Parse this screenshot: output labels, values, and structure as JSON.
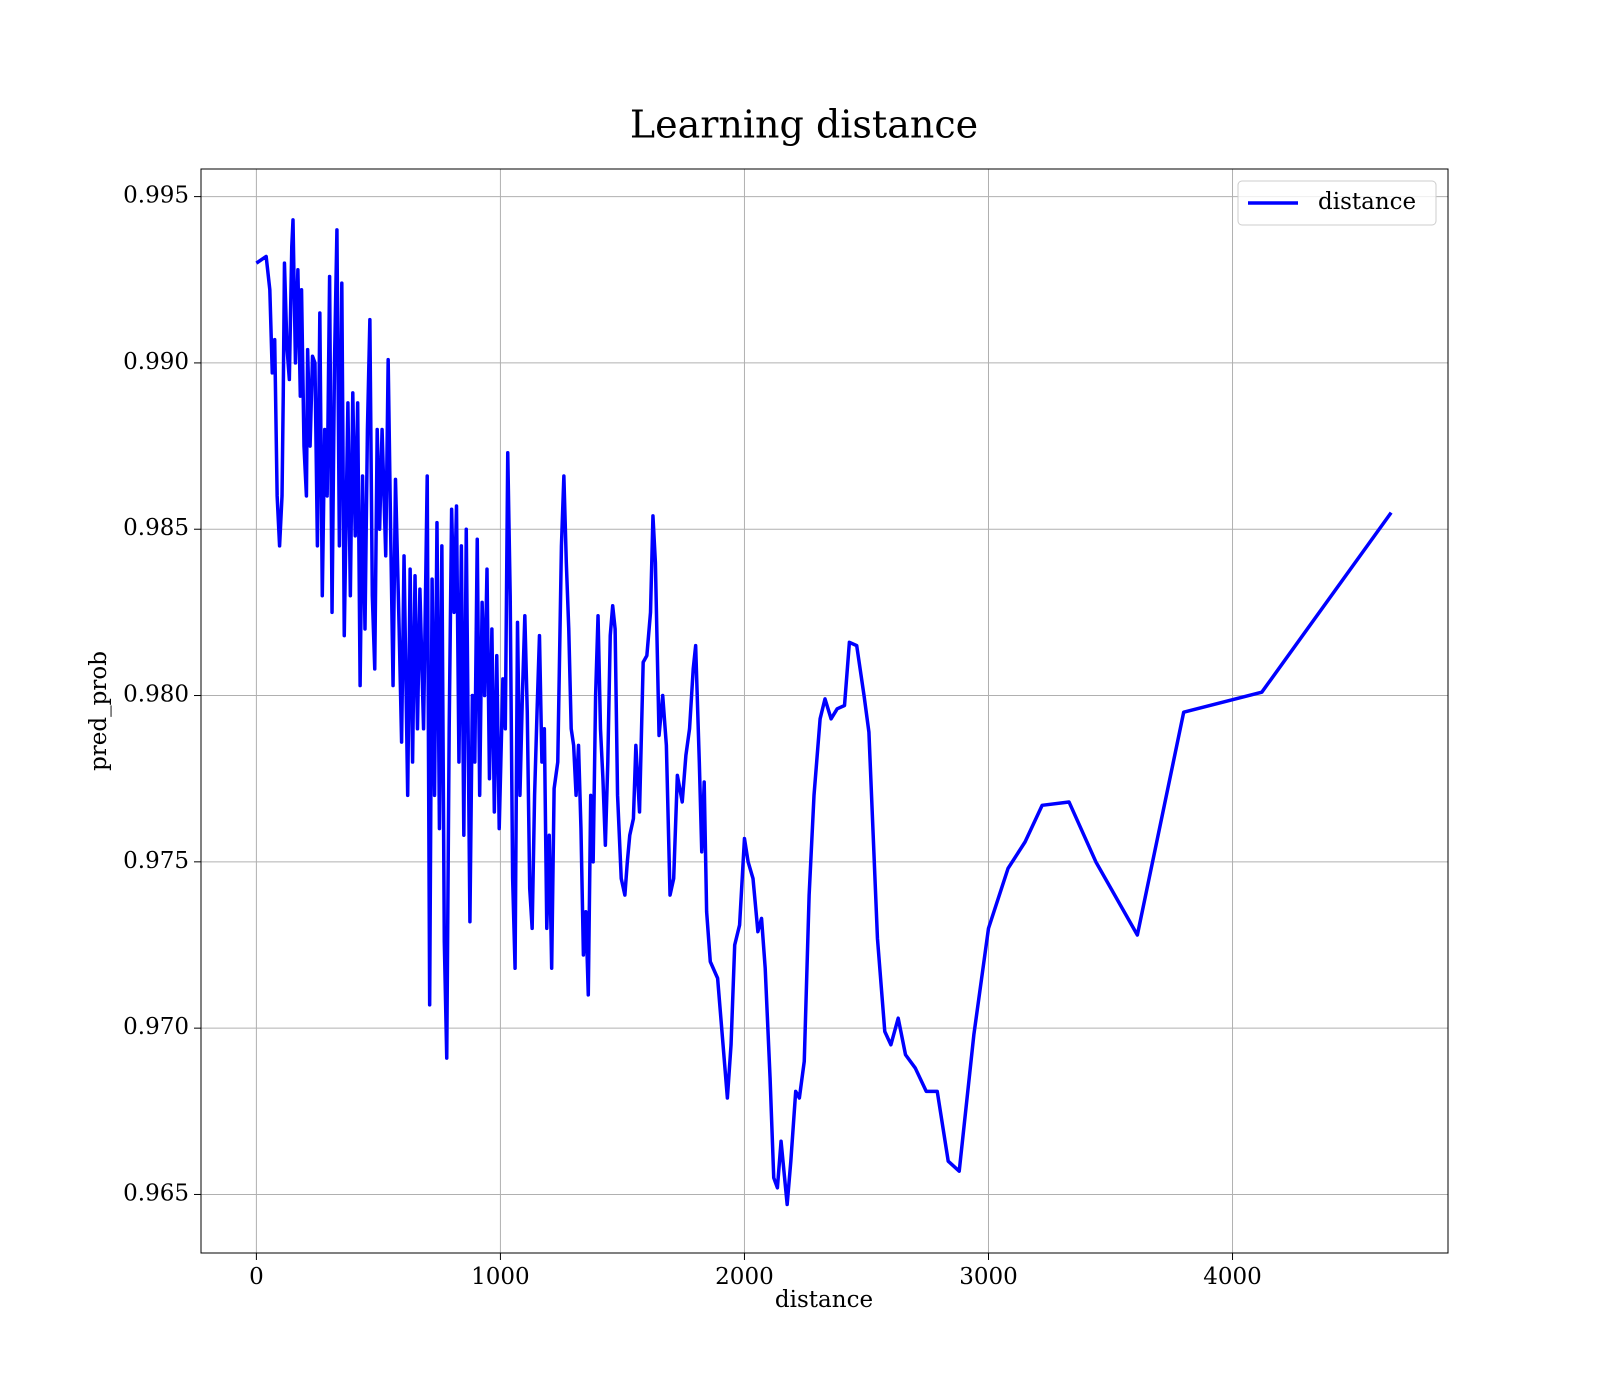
{
  "chart_data": {
    "type": "line",
    "title": "Learning distance",
    "xlabel": "distance",
    "ylabel": "pred_prob",
    "xlim": [
      -227,
      4883
    ],
    "ylim": [
      0.96324,
      0.99583
    ],
    "xticks": [
      0,
      1000,
      2000,
      3000,
      4000
    ],
    "yticks": [
      0.965,
      {
        "value": 0.97,
        "label": "0.970"
      },
      0.975,
      {
        "value": 0.98,
        "label": "0.980"
      },
      0.985,
      {
        "value": 0.99,
        "label": "0.990"
      },
      0.995
    ],
    "grid": true,
    "legend": "upper right",
    "x": [
      0,
      40,
      55,
      65,
      75,
      85,
      95,
      105,
      110,
      115,
      125,
      135,
      145,
      150,
      160,
      170,
      180,
      185,
      195,
      205,
      210,
      220,
      230,
      240,
      250,
      260,
      270,
      280,
      290,
      300,
      310,
      320,
      330,
      340,
      350,
      360,
      375,
      385,
      395,
      405,
      415,
      425,
      435,
      445,
      455,
      465,
      475,
      485,
      495,
      505,
      515,
      530,
      540,
      550,
      560,
      570,
      585,
      595,
      605,
      620,
      630,
      640,
      650,
      660,
      670,
      685,
      700,
      710,
      720,
      730,
      740,
      750,
      760,
      770,
      780,
      790,
      800,
      810,
      820,
      830,
      840,
      850,
      860,
      875,
      885,
      895,
      905,
      915,
      925,
      935,
      945,
      955,
      965,
      975,
      985,
      995,
      1010,
      1020,
      1030,
      1040,
      1050,
      1060,
      1070,
      1080,
      1090,
      1100,
      1110,
      1120,
      1130,
      1140,
      1150,
      1160,
      1170,
      1180,
      1190,
      1200,
      1210,
      1220,
      1235,
      1250,
      1260,
      1270,
      1280,
      1290,
      1300,
      1310,
      1320,
      1330,
      1340,
      1350,
      1360,
      1370,
      1380,
      1390,
      1400,
      1410,
      1420,
      1430,
      1440,
      1450,
      1460,
      1470,
      1480,
      1495,
      1510,
      1520,
      1530,
      1545,
      1555,
      1570,
      1585,
      1600,
      1615,
      1625,
      1635,
      1650,
      1665,
      1680,
      1695,
      1710,
      1725,
      1745,
      1760,
      1775,
      1790,
      1800,
      1815,
      1825,
      1835,
      1845,
      1860,
      1890,
      1930,
      1945,
      1960,
      1980,
      2000,
      2015,
      2035,
      2055,
      2070,
      2085,
      2105,
      2120,
      2135,
      2150,
      2175,
      2190,
      2210,
      2225,
      2245,
      2265,
      2285,
      2310,
      2330,
      2355,
      2380,
      2410,
      2430,
      2460,
      2490,
      2510,
      2545,
      2575,
      2600,
      2630,
      2660,
      2700,
      2745,
      2790,
      2835,
      2880,
      2940,
      3000,
      3080,
      3150,
      3220,
      3330,
      3440,
      3610,
      3800,
      4120,
      4650
    ],
    "series": [
      {
        "name": "distance",
        "color": "#0000ff",
        "values": [
          0.993,
          0.9932,
          0.9922,
          0.9897,
          0.9907,
          0.986,
          0.9845,
          0.986,
          0.989,
          0.993,
          0.9905,
          0.9895,
          0.9935,
          0.9943,
          0.99,
          0.9928,
          0.989,
          0.9922,
          0.9875,
          0.986,
          0.9904,
          0.9875,
          0.9902,
          0.99,
          0.9845,
          0.9915,
          0.983,
          0.988,
          0.986,
          0.9926,
          0.9825,
          0.99,
          0.994,
          0.9845,
          0.9924,
          0.9818,
          0.9888,
          0.983,
          0.9891,
          0.9848,
          0.9888,
          0.9803,
          0.9866,
          0.982,
          0.988,
          0.9913,
          0.983,
          0.9808,
          0.988,
          0.985,
          0.988,
          0.9842,
          0.9901,
          0.985,
          0.9803,
          0.9865,
          0.982,
          0.9786,
          0.9842,
          0.977,
          0.9838,
          0.978,
          0.9836,
          0.979,
          0.9832,
          0.979,
          0.9866,
          0.9707,
          0.9835,
          0.977,
          0.9852,
          0.976,
          0.9845,
          0.9726,
          0.9691,
          0.979,
          0.9856,
          0.9825,
          0.9857,
          0.978,
          0.9845,
          0.9758,
          0.985,
          0.9732,
          0.98,
          0.978,
          0.9847,
          0.977,
          0.9828,
          0.98,
          0.9838,
          0.9775,
          0.982,
          0.9765,
          0.9812,
          0.976,
          0.9805,
          0.979,
          0.9873,
          0.983,
          0.9745,
          0.9718,
          0.9822,
          0.977,
          0.98,
          0.9824,
          0.9795,
          0.9742,
          0.973,
          0.977,
          0.9795,
          0.9818,
          0.978,
          0.979,
          0.973,
          0.9758,
          0.9718,
          0.9772,
          0.978,
          0.9845,
          0.9866,
          0.984,
          0.982,
          0.979,
          0.9785,
          0.977,
          0.9785,
          0.976,
          0.9722,
          0.9735,
          0.971,
          0.977,
          0.975,
          0.98,
          0.9824,
          0.979,
          0.9775,
          0.9755,
          0.978,
          0.9818,
          0.9827,
          0.982,
          0.977,
          0.9745,
          0.974,
          0.975,
          0.9758,
          0.9763,
          0.9785,
          0.9765,
          0.981,
          0.9812,
          0.9825,
          0.9854,
          0.984,
          0.9788,
          0.98,
          0.9785,
          0.974,
          0.9745,
          0.9776,
          0.9768,
          0.9782,
          0.979,
          0.9808,
          0.9815,
          0.978,
          0.9753,
          0.9774,
          0.9735,
          0.972,
          0.9715,
          0.9679,
          0.9695,
          0.9725,
          0.9731,
          0.9757,
          0.975,
          0.9745,
          0.9729,
          0.9733,
          0.9718,
          0.9685,
          0.9655,
          0.9652,
          0.9666,
          0.9647,
          0.966,
          0.9681,
          0.9679,
          0.969,
          0.974,
          0.977,
          0.9793,
          0.9799,
          0.9793,
          0.9796,
          0.9797,
          0.9816,
          0.9815,
          0.98,
          0.9789,
          0.9727,
          0.9699,
          0.9695,
          0.9703,
          0.9692,
          0.9688,
          0.9681,
          0.9681,
          0.966,
          0.9657,
          0.9698,
          0.973,
          0.9748,
          0.9756,
          0.9767,
          0.9768,
          0.975,
          0.9728,
          0.9795,
          0.9801,
          0.9855
        ]
      }
    ]
  }
}
